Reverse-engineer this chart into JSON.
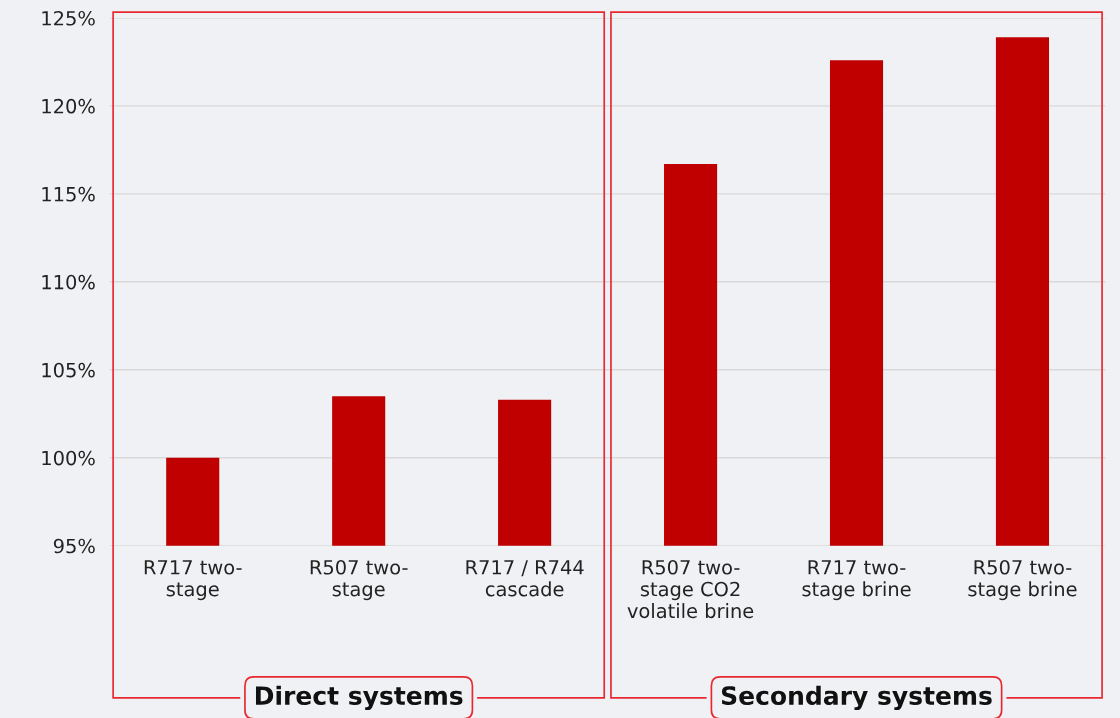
{
  "chart_data": {
    "type": "bar",
    "categories": [
      "R717 two-\nstage",
      "R507 two-\nstage",
      "R717 / R744\ncascade",
      "R507 two-\nstage CO2\nvolatile brine",
      "R717 two-\nstage brine",
      "R507 two-\nstage brine"
    ],
    "values": [
      100,
      103.5,
      103.3,
      116.7,
      122.6,
      123.9
    ],
    "color": "#c00000",
    "ylim": [
      95,
      125
    ],
    "yticks": [
      {
        "value": 95,
        "label": "95%"
      },
      {
        "value": 100,
        "label": "100%"
      },
      {
        "value": 105,
        "label": "105%"
      },
      {
        "value": 110,
        "label": "110%"
      },
      {
        "value": 115,
        "label": "115%"
      },
      {
        "value": 120,
        "label": "120%"
      },
      {
        "value": 125,
        "label": "125%"
      }
    ],
    "grid": "y",
    "annotations": [
      "Direct systems",
      "Secondary systems"
    ]
  }
}
